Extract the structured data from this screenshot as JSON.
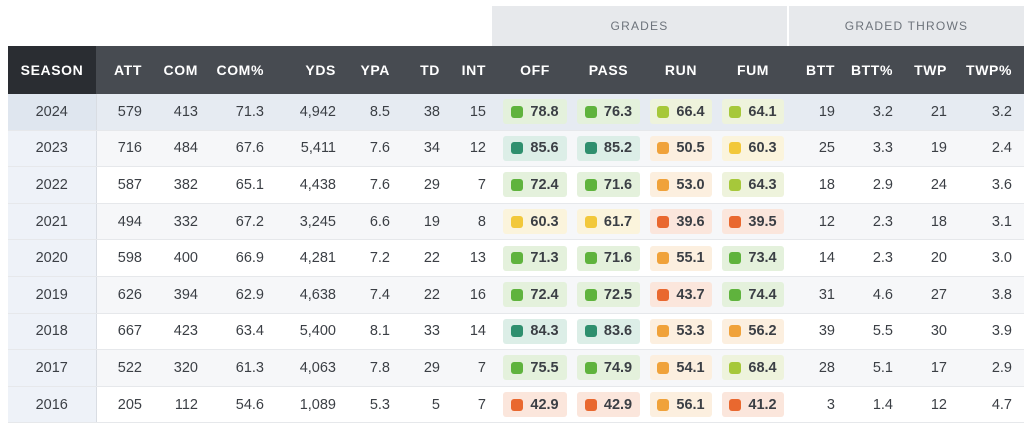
{
  "groups": {
    "grades": "GRADES",
    "graded_throws": "GRADED THROWS"
  },
  "columns": {
    "season": "SEASON",
    "att": "ATT",
    "com": "COM",
    "com_pct": "COM%",
    "yds": "YDS",
    "ypa": "YPA",
    "td": "TD",
    "int": "INT",
    "off": "OFF",
    "pass": "PASS",
    "run": "RUN",
    "fum": "FUM",
    "btt": "BTT",
    "btt_pct": "BTT%",
    "twp": "TWP",
    "twp_pct": "TWP%"
  },
  "grade_colors": {
    "dark_green": {
      "square": "#2f8f6e",
      "bg": "#dceee7"
    },
    "green": {
      "square": "#5fb33d",
      "bg": "#e4f1dc"
    },
    "lime": {
      "square": "#a6c83a",
      "bg": "#eef3dc"
    },
    "yellow": {
      "square": "#f2c83a",
      "bg": "#fbf4dc"
    },
    "orange": {
      "square": "#f0a23a",
      "bg": "#fcefdf"
    },
    "red_orange": {
      "square": "#e9682f",
      "bg": "#fbe6dc"
    }
  },
  "rows": [
    {
      "season": "2024",
      "att": "579",
      "com": "413",
      "com_pct": "71.3",
      "yds": "4,942",
      "ypa": "8.5",
      "td": "38",
      "int": "15",
      "off": {
        "v": "78.8",
        "c": "green"
      },
      "pass": {
        "v": "76.3",
        "c": "green"
      },
      "run": {
        "v": "66.4",
        "c": "lime"
      },
      "fum": {
        "v": "64.1",
        "c": "lime"
      },
      "btt": "19",
      "btt_pct": "3.2",
      "twp": "21",
      "twp_pct": "3.2"
    },
    {
      "season": "2023",
      "att": "716",
      "com": "484",
      "com_pct": "67.6",
      "yds": "5,411",
      "ypa": "7.6",
      "td": "34",
      "int": "12",
      "off": {
        "v": "85.6",
        "c": "dark_green"
      },
      "pass": {
        "v": "85.2",
        "c": "dark_green"
      },
      "run": {
        "v": "50.5",
        "c": "orange"
      },
      "fum": {
        "v": "60.3",
        "c": "yellow"
      },
      "btt": "25",
      "btt_pct": "3.3",
      "twp": "19",
      "twp_pct": "2.4"
    },
    {
      "season": "2022",
      "att": "587",
      "com": "382",
      "com_pct": "65.1",
      "yds": "4,438",
      "ypa": "7.6",
      "td": "29",
      "int": "7",
      "off": {
        "v": "72.4",
        "c": "green"
      },
      "pass": {
        "v": "71.6",
        "c": "green"
      },
      "run": {
        "v": "53.0",
        "c": "orange"
      },
      "fum": {
        "v": "64.3",
        "c": "lime"
      },
      "btt": "18",
      "btt_pct": "2.9",
      "twp": "24",
      "twp_pct": "3.6"
    },
    {
      "season": "2021",
      "att": "494",
      "com": "332",
      "com_pct": "67.2",
      "yds": "3,245",
      "ypa": "6.6",
      "td": "19",
      "int": "8",
      "off": {
        "v": "60.3",
        "c": "yellow"
      },
      "pass": {
        "v": "61.7",
        "c": "yellow"
      },
      "run": {
        "v": "39.6",
        "c": "red_orange"
      },
      "fum": {
        "v": "39.5",
        "c": "red_orange"
      },
      "btt": "12",
      "btt_pct": "2.3",
      "twp": "18",
      "twp_pct": "3.1"
    },
    {
      "season": "2020",
      "att": "598",
      "com": "400",
      "com_pct": "66.9",
      "yds": "4,281",
      "ypa": "7.2",
      "td": "22",
      "int": "13",
      "off": {
        "v": "71.3",
        "c": "green"
      },
      "pass": {
        "v": "71.6",
        "c": "green"
      },
      "run": {
        "v": "55.1",
        "c": "orange"
      },
      "fum": {
        "v": "73.4",
        "c": "green"
      },
      "btt": "14",
      "btt_pct": "2.3",
      "twp": "20",
      "twp_pct": "3.0"
    },
    {
      "season": "2019",
      "att": "626",
      "com": "394",
      "com_pct": "62.9",
      "yds": "4,638",
      "ypa": "7.4",
      "td": "22",
      "int": "16",
      "off": {
        "v": "72.4",
        "c": "green"
      },
      "pass": {
        "v": "72.5",
        "c": "green"
      },
      "run": {
        "v": "43.7",
        "c": "red_orange"
      },
      "fum": {
        "v": "74.4",
        "c": "green"
      },
      "btt": "31",
      "btt_pct": "4.6",
      "twp": "27",
      "twp_pct": "3.8"
    },
    {
      "season": "2018",
      "att": "667",
      "com": "423",
      "com_pct": "63.4",
      "yds": "5,400",
      "ypa": "8.1",
      "td": "33",
      "int": "14",
      "off": {
        "v": "84.3",
        "c": "dark_green"
      },
      "pass": {
        "v": "83.6",
        "c": "dark_green"
      },
      "run": {
        "v": "53.3",
        "c": "orange"
      },
      "fum": {
        "v": "56.2",
        "c": "orange"
      },
      "btt": "39",
      "btt_pct": "5.5",
      "twp": "30",
      "twp_pct": "3.9"
    },
    {
      "season": "2017",
      "att": "522",
      "com": "320",
      "com_pct": "61.3",
      "yds": "4,063",
      "ypa": "7.8",
      "td": "29",
      "int": "7",
      "off": {
        "v": "75.5",
        "c": "green"
      },
      "pass": {
        "v": "74.9",
        "c": "green"
      },
      "run": {
        "v": "54.1",
        "c": "orange"
      },
      "fum": {
        "v": "68.4",
        "c": "lime"
      },
      "btt": "28",
      "btt_pct": "5.1",
      "twp": "17",
      "twp_pct": "2.9"
    },
    {
      "season": "2016",
      "att": "205",
      "com": "112",
      "com_pct": "54.6",
      "yds": "1,089",
      "ypa": "5.3",
      "td": "5",
      "int": "7",
      "off": {
        "v": "42.9",
        "c": "red_orange"
      },
      "pass": {
        "v": "42.9",
        "c": "red_orange"
      },
      "run": {
        "v": "56.1",
        "c": "orange"
      },
      "fum": {
        "v": "41.2",
        "c": "red_orange"
      },
      "btt": "3",
      "btt_pct": "1.4",
      "twp": "12",
      "twp_pct": "4.7"
    }
  ]
}
